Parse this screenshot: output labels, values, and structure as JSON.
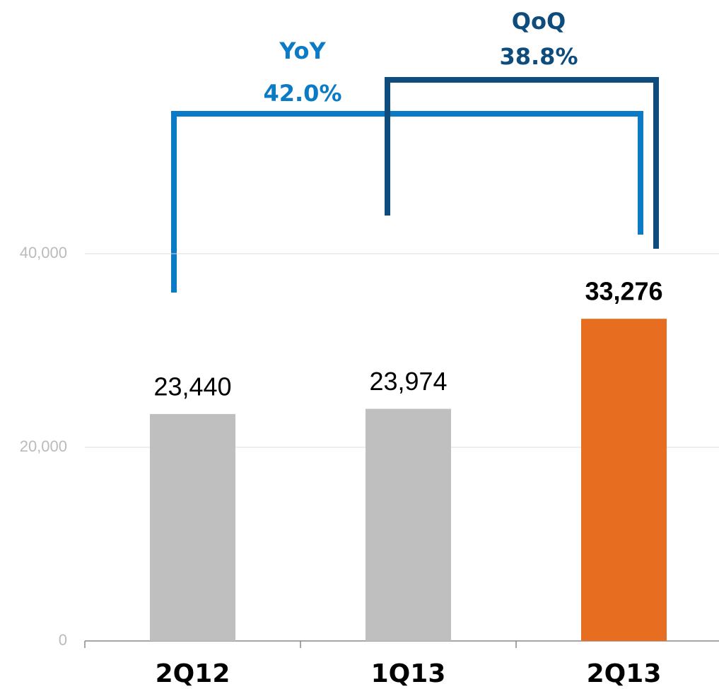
{
  "chart_data": {
    "type": "bar",
    "categories": [
      "2Q12",
      "1Q13",
      "2Q13"
    ],
    "values": [
      23440,
      23974,
      33276
    ],
    "value_labels": [
      "23,440",
      "23,974",
      "33,276"
    ],
    "colors": [
      "#bfbfbf",
      "#bfbfbf",
      "#e76d21"
    ],
    "ylim": [
      0,
      40000
    ],
    "yticks": [
      0,
      {
        "value": 20000,
        "label": "20,000"
      },
      {
        "value": 40000,
        "label": "40,000"
      }
    ],
    "grid": true,
    "annotations": [
      {
        "label": "YoY",
        "text": "42.0%",
        "color": "#0a7bc4"
      },
      {
        "label": "QoQ",
        "text": "38.8%",
        "color": "#0d4c7c"
      }
    ]
  }
}
